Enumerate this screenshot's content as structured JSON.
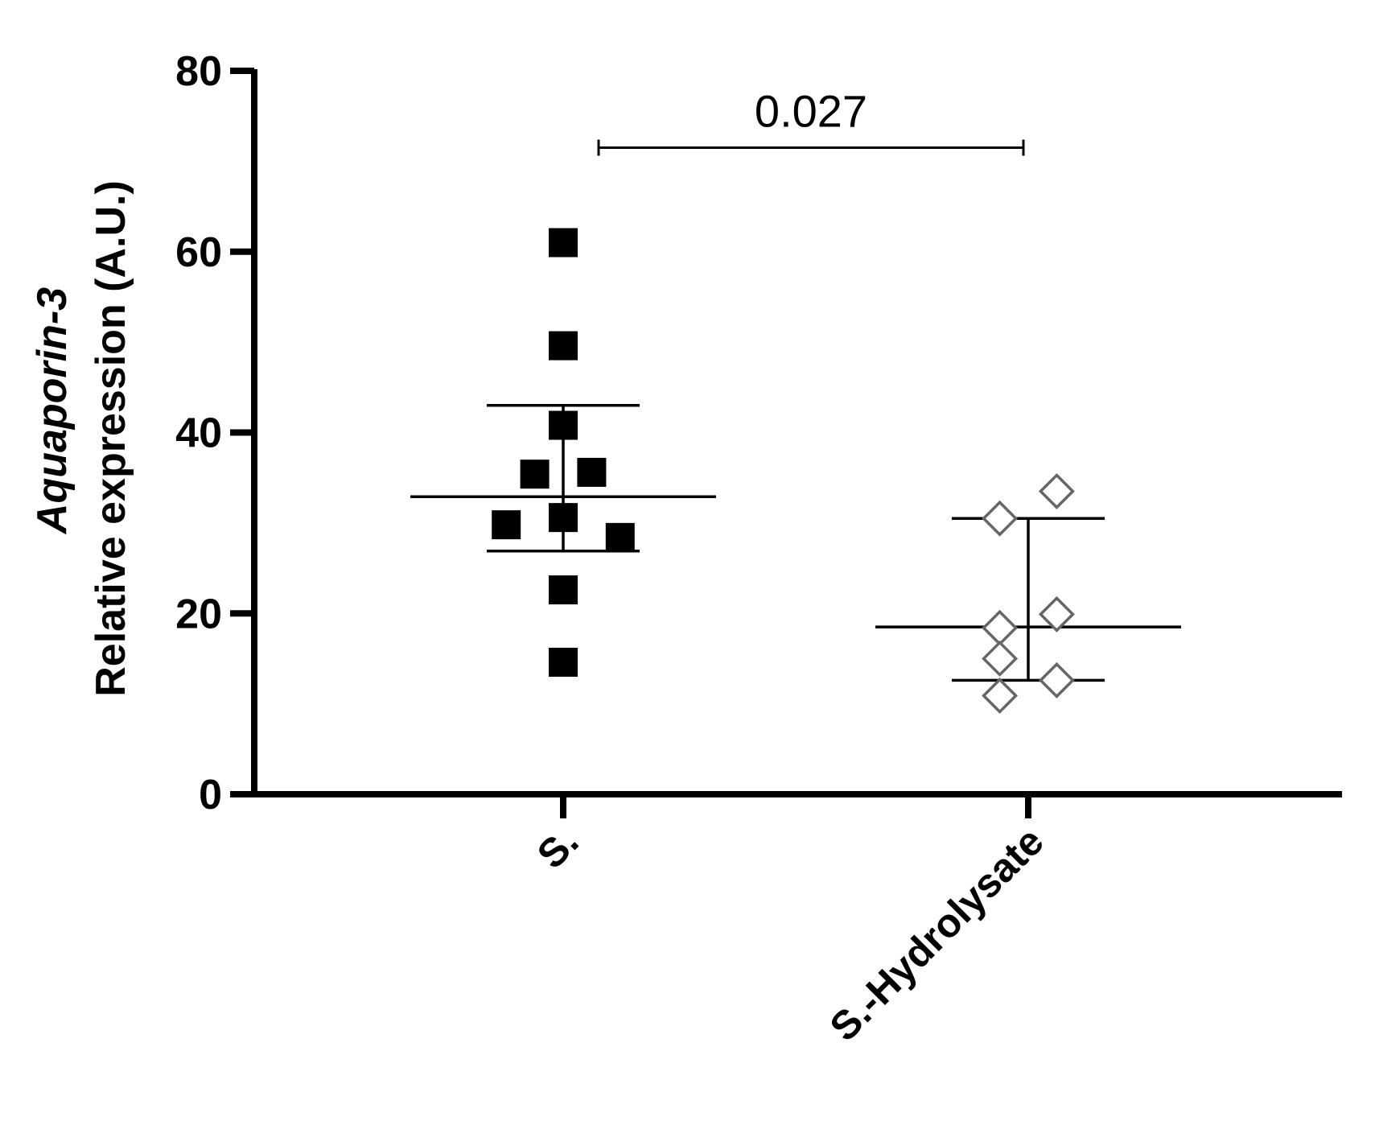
{
  "chart_data": {
    "type": "scatter",
    "categories": [
      "S.",
      "S.-Hydrolysate"
    ],
    "ylabel_line1": "Aquaporin-3",
    "ylabel_line2": "Relative expression (A.U.)",
    "ylim": [
      0,
      80
    ],
    "yticks": [
      "0",
      "20",
      "40",
      "60",
      "80"
    ],
    "series": [
      {
        "category": "S.",
        "marker": "filled-square",
        "color": "#000000",
        "points": [
          {
            "x": 0,
            "y": 61.0
          },
          {
            "x": 0,
            "y": 49.6
          },
          {
            "x": 0,
            "y": 40.8
          },
          {
            "x": -0.12,
            "y": 35.4
          },
          {
            "x": 0.12,
            "y": 35.6
          },
          {
            "x": -0.24,
            "y": 29.8
          },
          {
            "x": 0,
            "y": 30.6
          },
          {
            "x": 0.24,
            "y": 28.4
          },
          {
            "x": 0,
            "y": 22.6
          },
          {
            "x": 0,
            "y": 14.6
          }
        ],
        "median": 32.9,
        "q1": 26.9,
        "q3": 43.0
      },
      {
        "category": "S.-Hydrolysate",
        "marker": "open-diamond",
        "color": "#666666",
        "points": [
          {
            "x": 0.12,
            "y": 33.5
          },
          {
            "x": -0.12,
            "y": 30.5
          },
          {
            "x": 0.12,
            "y": 19.9
          },
          {
            "x": -0.12,
            "y": 18.4
          },
          {
            "x": -0.12,
            "y": 15.0
          },
          {
            "x": 0.12,
            "y": 12.6
          },
          {
            "x": -0.12,
            "y": 10.9
          }
        ],
        "median": 18.5,
        "q1": 12.6,
        "q3": 30.5
      }
    ],
    "significance": {
      "label": "0.027",
      "y": 71.5,
      "from": "S.",
      "to": "S.-Hydrolysate"
    }
  }
}
